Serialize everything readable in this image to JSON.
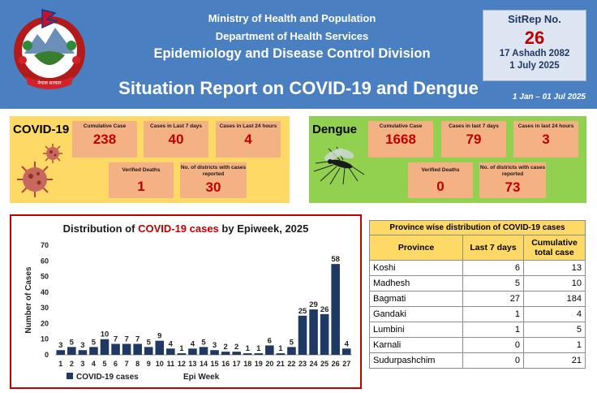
{
  "header": {
    "ministry": "Ministry of Health and Population",
    "department": "Department of Health Services",
    "division": "Epidemiology and Disease Control Division",
    "title": "Situation Report on COVID-19 and Dengue",
    "period": "1 Jan – 01 Jul 2025",
    "emblem_text": "नेपाल सरकार"
  },
  "sitrep": {
    "label": "SitRep No.",
    "number": "26",
    "date_nepali": "17 Ashadh 2082",
    "date_english": "1 July 2025"
  },
  "covid": {
    "title": "COVID-19",
    "cards": {
      "cumulative_label": "Cumulative Case",
      "cumulative_value": "238",
      "last7_label": "Cases in Last 7 days",
      "last7_value": "40",
      "last24_label": "Cases in Last 24 hours",
      "last24_value": "4",
      "deaths_label": "Verified Deaths",
      "deaths_value": "1",
      "districts_label": "No. of districts with cases reported",
      "districts_value": "30"
    }
  },
  "dengue": {
    "title": "Dengue",
    "cards": {
      "cumulative_label": "Cumulative Case",
      "cumulative_value": "1668",
      "last7_label": "Cases in last 7 days",
      "last7_value": "79",
      "last24_label": "Cases in last 24 hours",
      "last24_value": "3",
      "deaths_label": "Verified Deaths",
      "deaths_value": "0",
      "districts_label": "No. of districts with cases reported",
      "districts_value": "73"
    }
  },
  "chart_data": {
    "type": "bar",
    "title_prefix": "Distribution of ",
    "title_highlight": "COVID-19 cases",
    "title_suffix": " by Epiweek, 2025",
    "ylabel": "Number of Cases",
    "xlabel": "Epi Week",
    "ylim": [
      0,
      70
    ],
    "yticks": [
      0,
      10,
      20,
      30,
      40,
      50,
      60,
      70
    ],
    "categories": [
      "1",
      "2",
      "3",
      "4",
      "5",
      "6",
      "7",
      "8",
      "9",
      "10",
      "11",
      "12",
      "13",
      "14",
      "15",
      "16",
      "17",
      "18",
      "19",
      "20",
      "21",
      "22",
      "23",
      "24",
      "25",
      "26",
      "27"
    ],
    "series": [
      {
        "name": "COVID-19 cases",
        "values": [
          3,
          5,
          3,
          5,
          10,
          7,
          7,
          7,
          5,
          9,
          4,
          1,
          4,
          5,
          3,
          2,
          2,
          1,
          1,
          6,
          1,
          5,
          25,
          29,
          26,
          58,
          4
        ]
      }
    ],
    "bar_color": "#1f3864",
    "legend_position": "bottom-left"
  },
  "province_table": {
    "caption": "Province wise distribution of COVID-19 cases",
    "headers": [
      "Province",
      "Last 7 days",
      "Cumulative total case"
    ],
    "rows": [
      [
        "Koshi",
        "6",
        "13"
      ],
      [
        "Madhesh",
        "5",
        "10"
      ],
      [
        "Bagmati",
        "27",
        "184"
      ],
      [
        "Gandaki",
        "1",
        "4"
      ],
      [
        "Lumbini",
        "1",
        "5"
      ],
      [
        "Karnali",
        "0",
        "1"
      ],
      [
        "Sudurpashchim",
        "0",
        "21"
      ]
    ]
  },
  "colors": {
    "header_bg": "#4a7fc1",
    "covid_panel": "#ffd966",
    "dengue_panel": "#92d050",
    "card": "#f4b183",
    "value_red": "#c00000",
    "bar": "#1f3864"
  }
}
